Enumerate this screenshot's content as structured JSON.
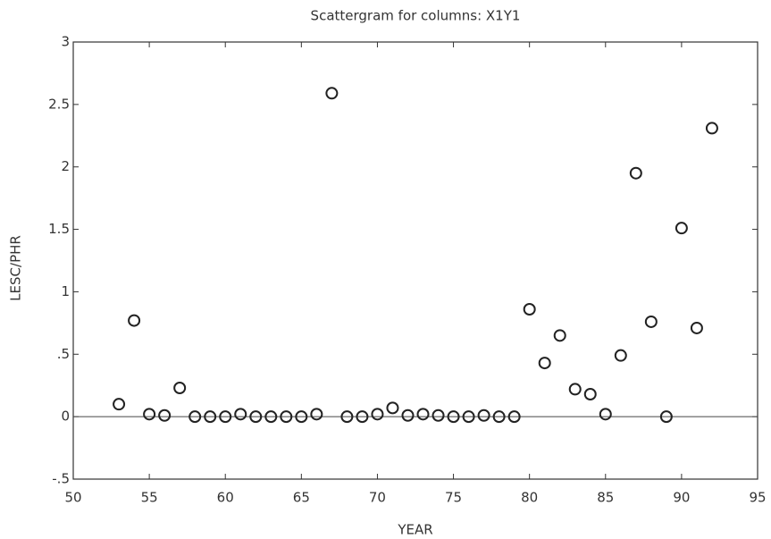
{
  "chart_data": {
    "type": "scatter",
    "title": "Scattergram for columns: X1Y1",
    "x_label": "YEAR",
    "y_label": "LESC/PHR",
    "x": [
      53,
      54,
      55,
      56,
      57,
      58,
      59,
      60,
      61,
      62,
      63,
      64,
      65,
      66,
      67,
      68,
      69,
      70,
      71,
      72,
      73,
      74,
      75,
      76,
      77,
      78,
      79,
      80,
      81,
      82,
      83,
      84,
      85,
      86,
      87,
      88,
      89,
      90,
      91,
      92
    ],
    "values": [
      0.1,
      0.77,
      0.02,
      0.01,
      0.23,
      0,
      0,
      0,
      0.02,
      0,
      0,
      0,
      0,
      0.02,
      2.59,
      0,
      0,
      0.02,
      0.07,
      0.01,
      0.02,
      0.01,
      0,
      0,
      0.01,
      0,
      0,
      0.86,
      0.43,
      0.65,
      0.22,
      0.18,
      0.02,
      0.49,
      1.95,
      0.76,
      0,
      1.51,
      0.71,
      2.31
    ],
    "xlim": [
      50,
      95
    ],
    "xticks": [
      50,
      55,
      60,
      65,
      70,
      75,
      80,
      85,
      90,
      95
    ],
    "ylim": [
      -0.5,
      3
    ],
    "yticks": [
      {
        "value": -0.5,
        "label": "-.5"
      },
      0,
      {
        "value": 0.5,
        "label": ".5"
      },
      1,
      1.5,
      2,
      2.5,
      3
    ],
    "color": "#222222",
    "grid": false
  }
}
